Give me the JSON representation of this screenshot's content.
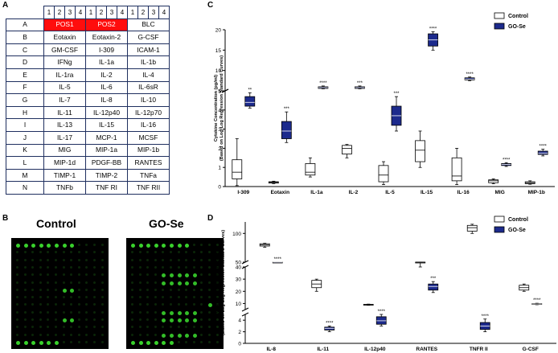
{
  "panel_labels": {
    "a": "A",
    "b": "B",
    "c": "C",
    "d": "D"
  },
  "table_a": {
    "subcolumns": [
      "1",
      "2",
      "3",
      "4"
    ],
    "rows": [
      {
        "label": "A",
        "cells": [
          "POS1",
          "POS2",
          "BLC"
        ]
      },
      {
        "label": "B",
        "cells": [
          "Eotaxin",
          "Eotaxin-2",
          "G-CSF"
        ]
      },
      {
        "label": "C",
        "cells": [
          "GM-CSF",
          "I-309",
          "ICAM-1"
        ]
      },
      {
        "label": "D",
        "cells": [
          "IFNg",
          "IL-1a",
          "IL-1b"
        ]
      },
      {
        "label": "E",
        "cells": [
          "IL-1ra",
          "IL-2",
          "IL-4"
        ]
      },
      {
        "label": "F",
        "cells": [
          "IL-5",
          "IL-6",
          "IL-6sR"
        ]
      },
      {
        "label": "G",
        "cells": [
          "IL-7",
          "IL-8",
          "IL-10"
        ]
      },
      {
        "label": "H",
        "cells": [
          "IL-11",
          "IL-12p40",
          "IL-12p70"
        ]
      },
      {
        "label": "I",
        "cells": [
          "IL-13",
          "IL-15",
          "IL-16"
        ]
      },
      {
        "label": "J",
        "cells": [
          "IL-17",
          "MCP-1",
          "MCSF"
        ]
      },
      {
        "label": "K",
        "cells": [
          "MIG",
          "MIP-1a",
          "MIP-1b"
        ]
      },
      {
        "label": "L",
        "cells": [
          "MIP-1d",
          "PDGF-BB",
          "RANTES"
        ]
      },
      {
        "label": "M",
        "cells": [
          "TIMP-1",
          "TIMP-2",
          "TNFa"
        ]
      },
      {
        "label": "N",
        "cells": [
          "TNFb",
          "TNF RI",
          "TNF RII"
        ]
      }
    ],
    "highlight_color": "#ff0d0d"
  },
  "panel_b": {
    "control_title": "Control",
    "treated_title": "GO-Se",
    "spot_color": "#39d12c"
  },
  "colors": {
    "control": "#ffffff",
    "gose": "#1c2a8c",
    "axis": "#000000",
    "sig": "#000000"
  },
  "chart_data": [
    {
      "id": "C",
      "type": "box",
      "ylabel_line1": "Cytokine Concentration (pg/ml)",
      "ylabel_line2": "(Based on Log-Log Regression Standard Curves)",
      "legend": [
        "Control",
        "GO-Se"
      ],
      "legend_position": "top-right",
      "categories": [
        "I-309",
        "Eotaxin",
        "IL-1a",
        "IL-2",
        "IL-5",
        "IL-15",
        "IL-16",
        "MIG",
        "MIP-1b"
      ],
      "axis_segments": [
        {
          "range": [
            0,
            5
          ],
          "ticks": [
            "0",
            "1",
            "2",
            "3",
            "4",
            "5"
          ]
        },
        {
          "range": [
            5,
            20
          ],
          "ticks": [
            "5",
            "10",
            "15",
            "20"
          ]
        }
      ],
      "series": [
        {
          "name": "Control",
          "boxes": [
            [
              0.05,
              0.4,
              0.75,
              1.4,
              2.5
            ],
            [
              0.15,
              0.18,
              0.22,
              0.25,
              0.28
            ],
            [
              0.5,
              0.6,
              0.75,
              1.2,
              1.5
            ],
            [
              1.5,
              1.7,
              2.0,
              2.15,
              2.2
            ],
            [
              0.1,
              0.25,
              0.6,
              1.1,
              1.3
            ],
            [
              1.0,
              1.3,
              1.9,
              2.4,
              2.9
            ],
            [
              0.1,
              0.3,
              0.55,
              1.5,
              2.0
            ],
            [
              0.15,
              0.2,
              0.3,
              0.35,
              0.4
            ],
            [
              0.12,
              0.15,
              0.2,
              0.25,
              0.3
            ]
          ]
        },
        {
          "name": "GO-Se",
          "boxes": [
            [
              4.1,
              4.2,
              4.4,
              4.7,
              4.9
            ],
            [
              2.3,
              2.5,
              2.9,
              3.4,
              3.9
            ],
            [
              5.5,
              5.6,
              5.8,
              6.0,
              6.2
            ],
            [
              5.5,
              5.6,
              5.8,
              6.0,
              6.2
            ],
            [
              2.9,
              3.2,
              3.7,
              4.2,
              4.7
            ],
            [
              15.0,
              16.0,
              17.5,
              19.0,
              19.5
            ],
            [
              7.5,
              7.7,
              7.9,
              8.2,
              8.4
            ],
            [
              1.05,
              1.1,
              1.15,
              1.2,
              1.25
            ],
            [
              1.6,
              1.68,
              1.75,
              1.85,
              1.95
            ]
          ]
        }
      ],
      "significance": [
        "**",
        "***",
        "****",
        "***",
        "***",
        "****",
        "****",
        "****",
        "****"
      ]
    },
    {
      "id": "D",
      "type": "box",
      "ylabel_line1": "Cytokine Concentration (pg/ml)",
      "ylabel_line2": "(Based on Log-Log Regression Standard Curves)",
      "legend": [
        "Control",
        "GO-Se"
      ],
      "legend_position": "top-right",
      "categories": [
        "IL-8",
        "IL-11",
        "IL-12p40",
        "RANTES",
        "TNFR II",
        "G-CSF"
      ],
      "axis_segments": [
        {
          "range": [
            0,
            5
          ],
          "ticks": [
            "0",
            "2",
            "4"
          ]
        },
        {
          "range": [
            5,
            40
          ],
          "ticks": [
            "10",
            "20",
            "30",
            "40"
          ]
        },
        {
          "range": [
            50,
            120
          ],
          "ticks": [
            "50",
            "100"
          ]
        }
      ],
      "series": [
        {
          "name": "Control",
          "boxes": [
            [
              76,
              78,
              80,
              82,
              83
            ],
            [
              20,
              23,
              26,
              29,
              30
            ],
            [
              8.5,
              8.7,
              9.0,
              9.3,
              9.5
            ],
            [
              40,
              42,
              45,
              47,
              48
            ],
            [
              100,
              104,
              110,
              114,
              116
            ],
            [
              20,
              21,
              23,
              25,
              26
            ]
          ]
        },
        {
          "name": "GO-Se",
          "boxes": [
            [
              44,
              45,
              46,
              47,
              48
            ],
            [
              2.0,
              2.3,
              2.6,
              2.8,
              3.0
            ],
            [
              3.0,
              3.3,
              3.9,
              4.6,
              5.0
            ],
            [
              19,
              21,
              24,
              26,
              28
            ],
            [
              2.0,
              2.4,
              3.0,
              3.6,
              4.2
            ],
            [
              9.0,
              9.3,
              9.6,
              9.9,
              10.2
            ]
          ]
        }
      ],
      "significance": [
        "****",
        "****",
        "****",
        "***",
        "****",
        "****"
      ]
    }
  ]
}
